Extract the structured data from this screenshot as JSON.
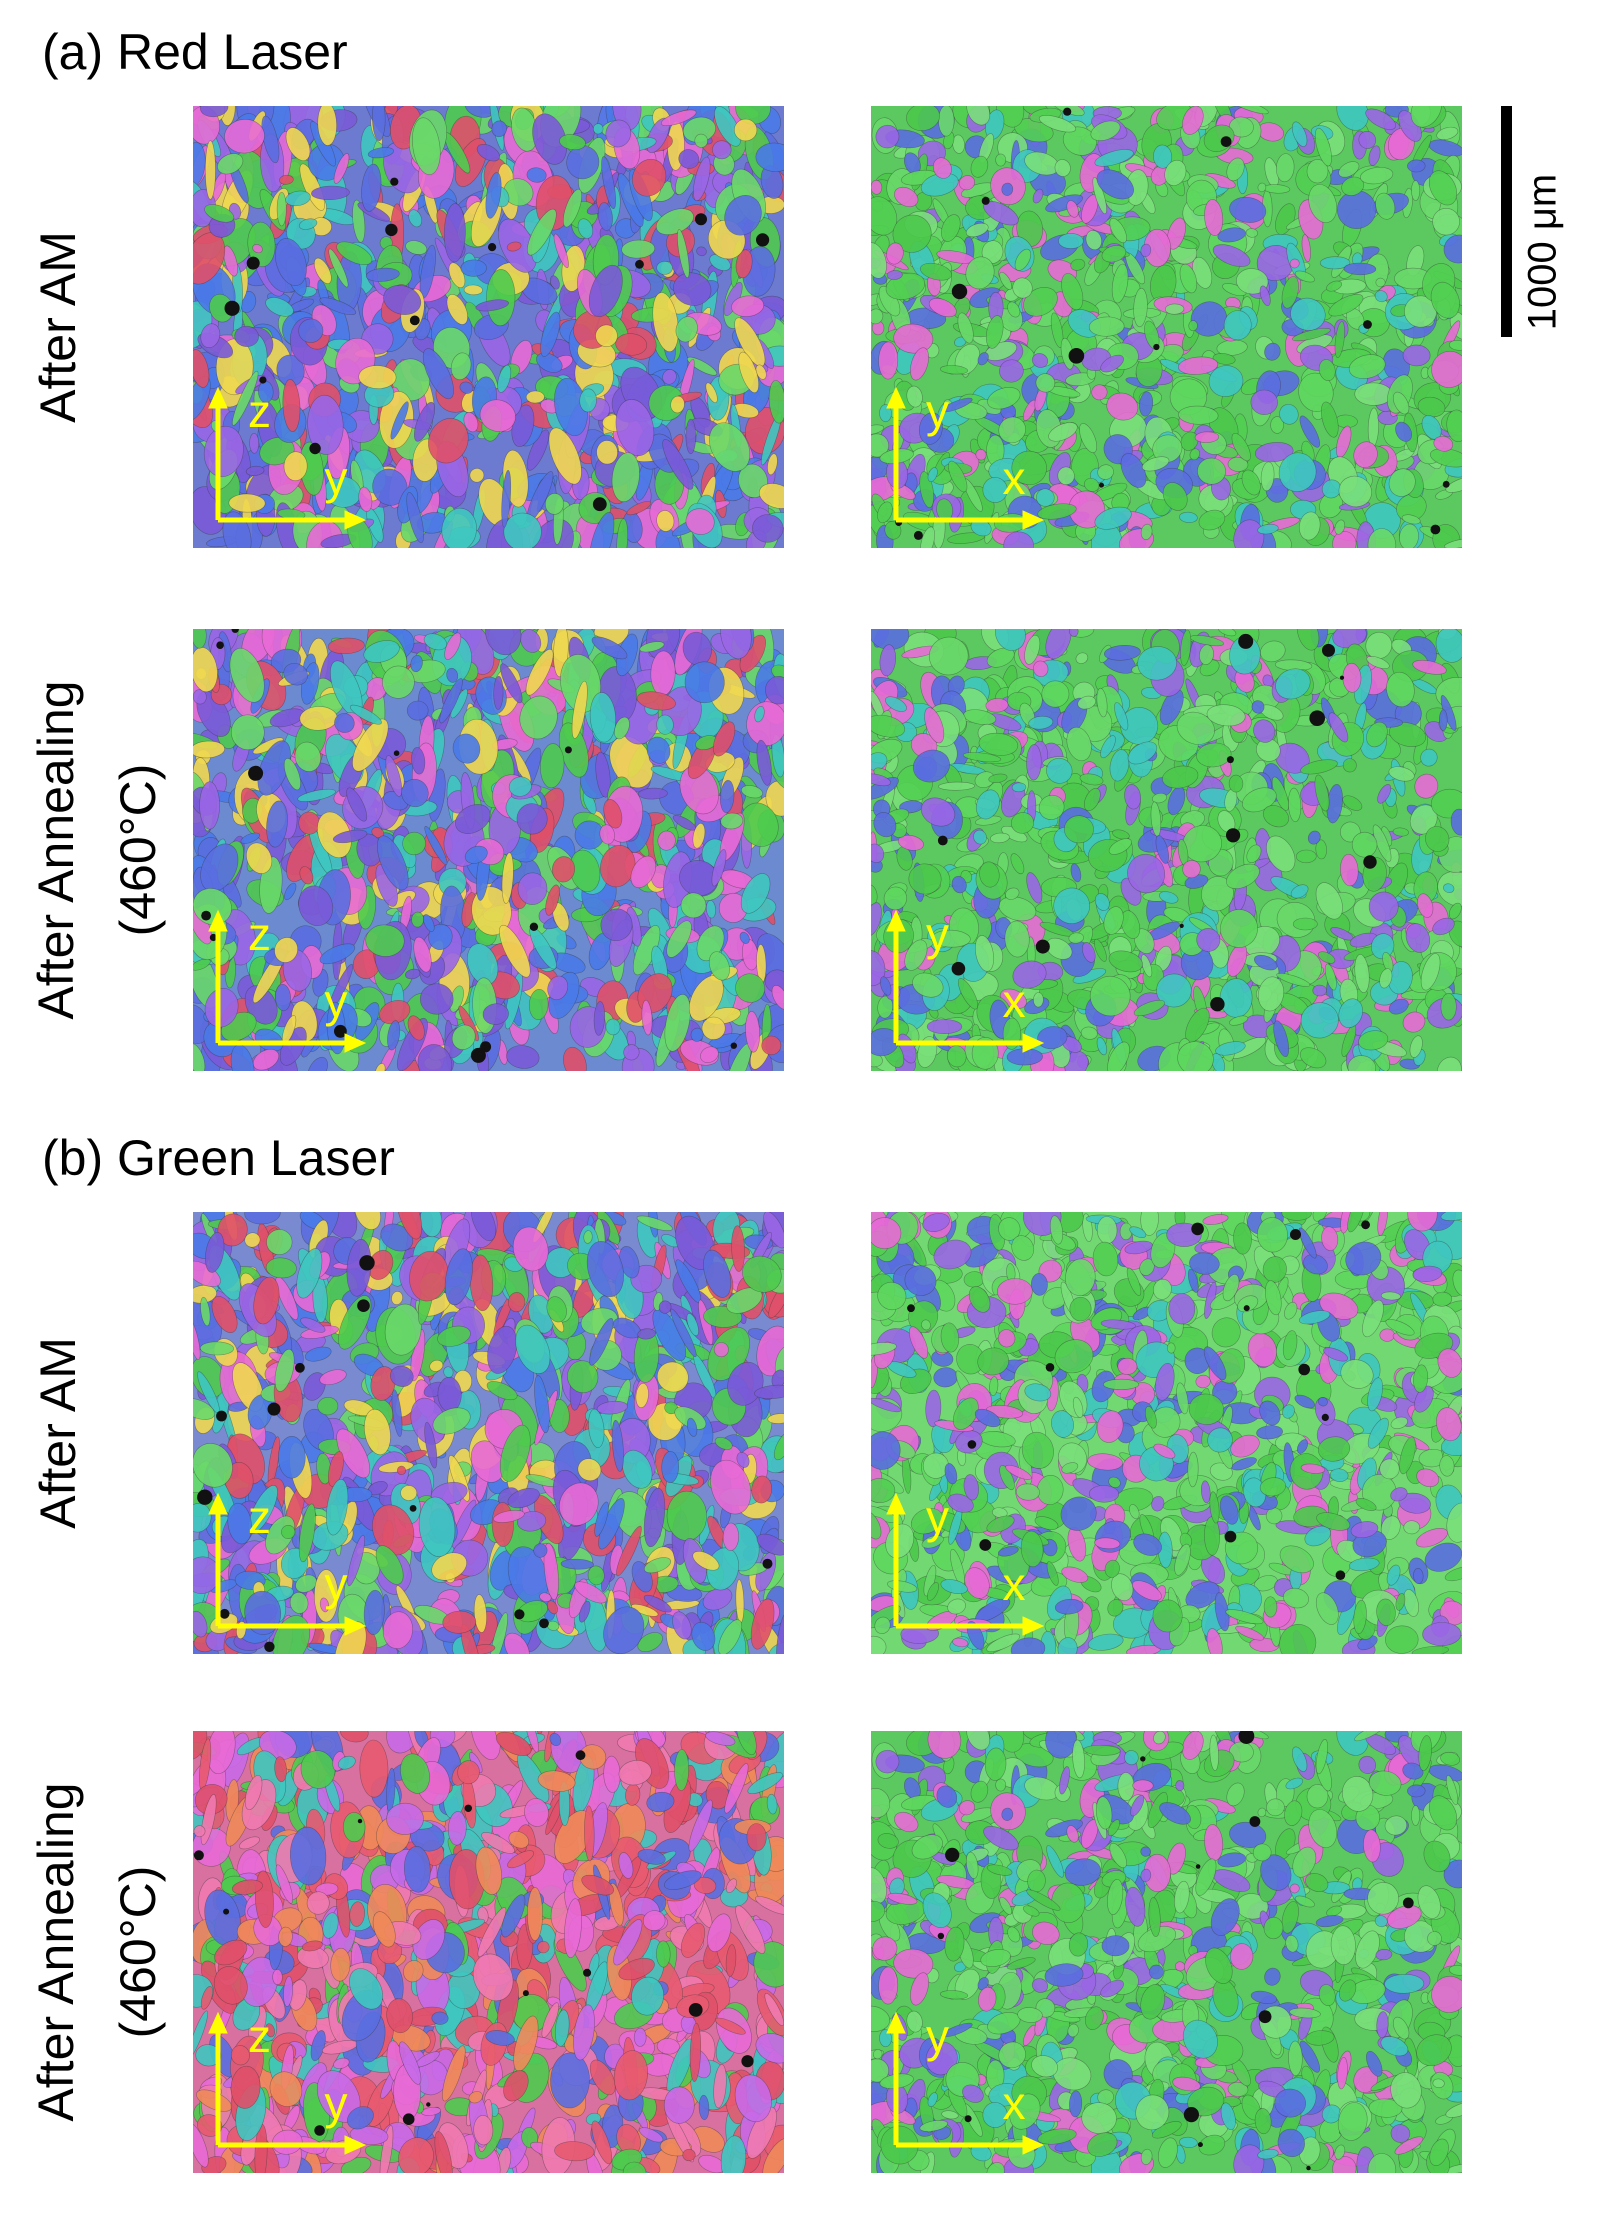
{
  "figure": {
    "sections": [
      {
        "title": "(a) Red Laser",
        "rows": [
          {
            "label": "After AM",
            "panels": [
              {
                "v": "z",
                "h": "y"
              },
              {
                "v": "y",
                "h": "x"
              }
            ]
          },
          {
            "label": "After Annealing",
            "sublabel": "(460°C)",
            "panels": [
              {
                "v": "z",
                "h": "y"
              },
              {
                "v": "y",
                "h": "x"
              }
            ]
          }
        ]
      },
      {
        "title": "(b) Green Laser",
        "rows": [
          {
            "label": "After AM",
            "panels": [
              {
                "v": "z",
                "h": "y"
              },
              {
                "v": "y",
                "h": "x"
              }
            ]
          },
          {
            "label": "After Annealing",
            "sublabel": "(460°C)",
            "panels": [
              {
                "v": "z",
                "h": "y"
              },
              {
                "v": "y",
                "h": "x"
              }
            ]
          }
        ]
      }
    ],
    "scale_bar": "1000 μm"
  }
}
